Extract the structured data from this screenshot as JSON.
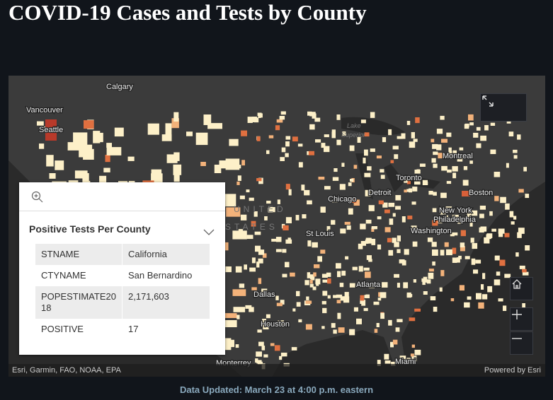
{
  "header": {
    "title": "COVID-19 Cases and Tests by County"
  },
  "map": {
    "labels": [
      "Calgary",
      "Vancouver",
      "Seattle",
      "Lake",
      "Superior",
      "Montreal",
      "Toronto",
      "Detroit",
      "Chicago",
      "Boston",
      "New York",
      "Philadelphia",
      "Washington",
      "St Louis",
      "UNITED",
      "STATES",
      "Dallas",
      "Atlanta",
      "Houston",
      "Monterrey",
      "Miami"
    ],
    "attribution": "Esri, Garmin, FAO, NOAA, EPA",
    "powered_by": "Powered by Esri"
  },
  "popup": {
    "title": "Positive Tests Per County",
    "table": {
      "rows": [
        [
          "STNAME",
          "California"
        ],
        [
          "CTYNAME",
          "San Bernardino"
        ],
        [
          "POPESTIMATE2018",
          "2,171,603"
        ],
        [
          "POSITIVE",
          "17"
        ]
      ]
    }
  },
  "footer": {
    "text": "Data Updated: March 23 at 4:00 p.m. eastern"
  }
}
